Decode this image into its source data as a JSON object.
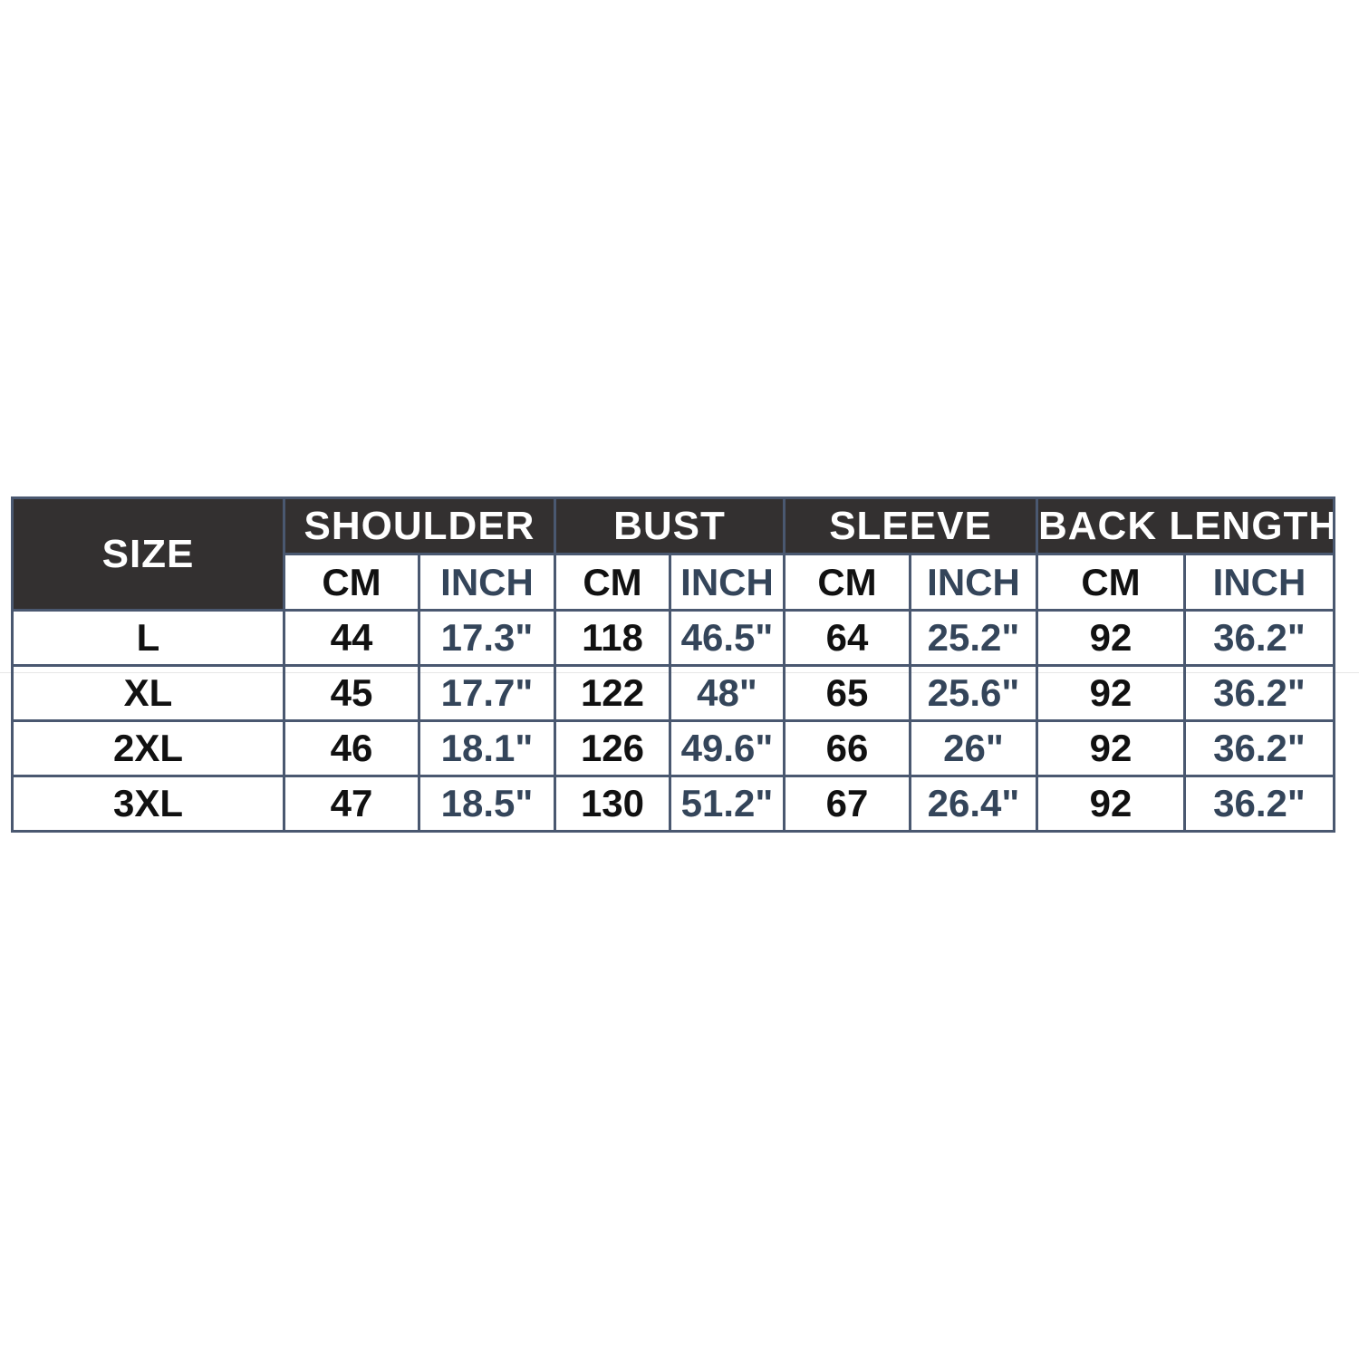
{
  "table": {
    "size_header": "SIZE",
    "groups": [
      "SHOULDER",
      "BUST",
      "SLEEVE",
      "BACK LENGTH"
    ],
    "units": [
      "CM",
      "INCH"
    ],
    "rows": [
      {
        "size": "L",
        "values": [
          "44",
          "17.3\"",
          "118",
          "46.5\"",
          "64",
          "25.2\"",
          "92",
          "36.2\""
        ]
      },
      {
        "size": "XL",
        "values": [
          "45",
          "17.7\"",
          "122",
          "48\"",
          "65",
          "25.6\"",
          "92",
          "36.2\""
        ]
      },
      {
        "size": "2XL",
        "values": [
          "46",
          "18.1\"",
          "126",
          "49.6\"",
          "66",
          "26\"",
          "92",
          "36.2\""
        ]
      },
      {
        "size": "3XL",
        "values": [
          "47",
          "18.5\"",
          "130",
          "51.2\"",
          "67",
          "26.4\"",
          "92",
          "36.2\""
        ]
      }
    ]
  },
  "colors": {
    "header_bg": "#333030",
    "border": "#4a5870",
    "inch_text": "#34455a",
    "cm_text": "#111111"
  }
}
